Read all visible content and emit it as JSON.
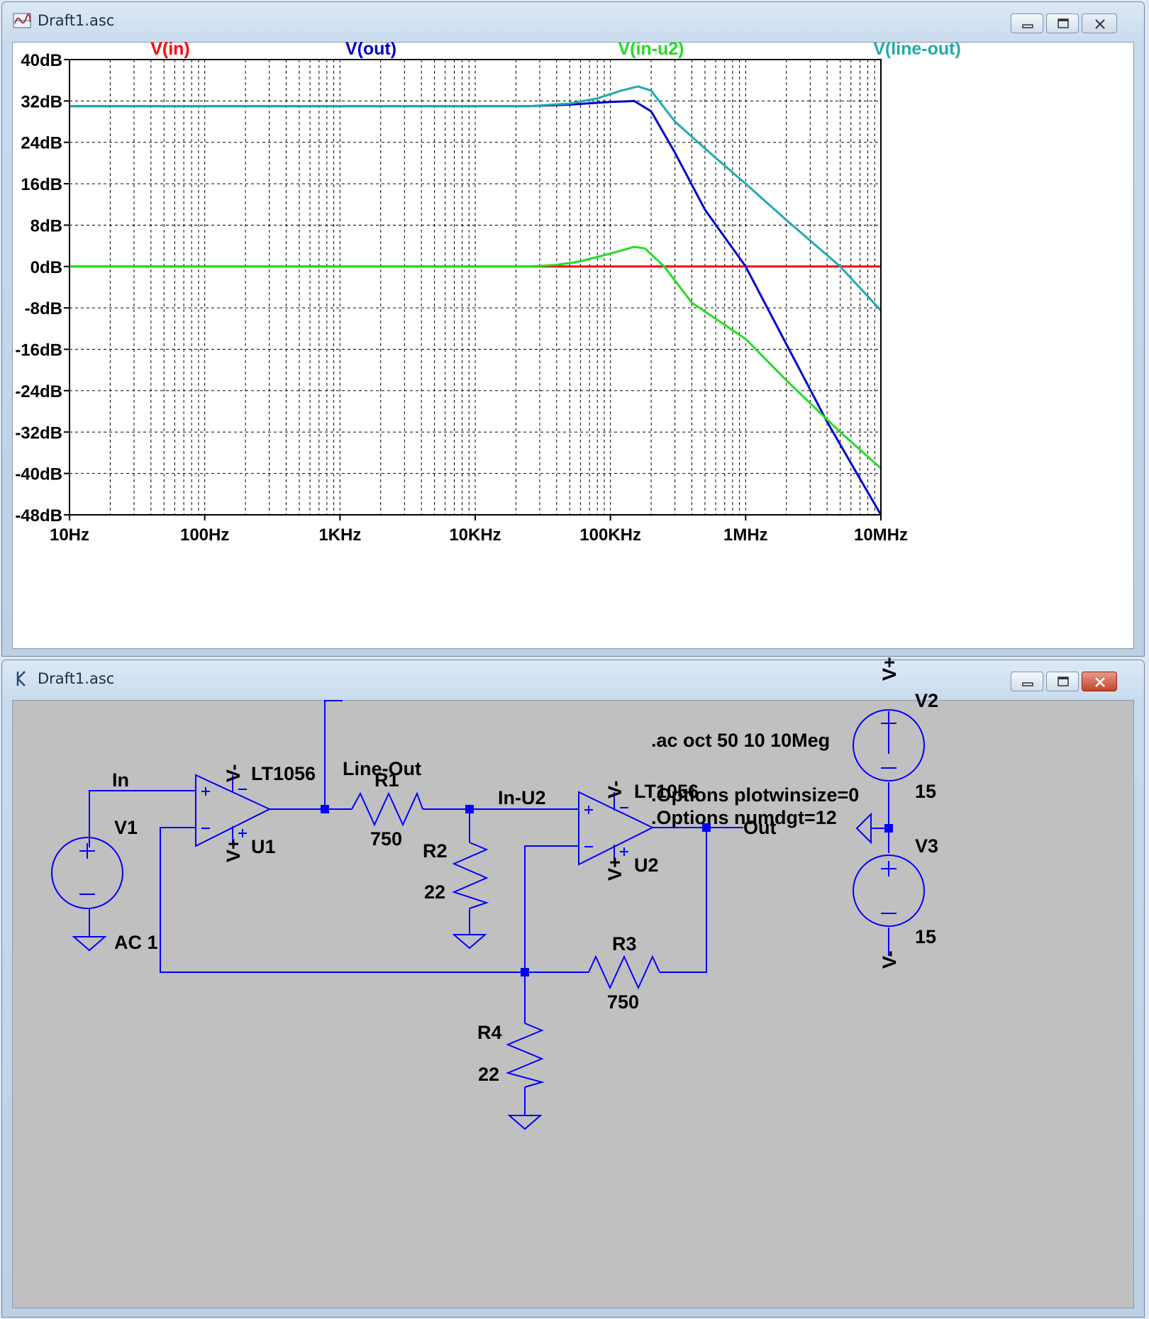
{
  "plot_window": {
    "title": "Draft1.asc",
    "icon": "waveform-icon"
  },
  "schematic_window": {
    "title": "Draft1.asc",
    "icon": "schematic-icon"
  },
  "chart_data": {
    "type": "line",
    "x_scale": "log",
    "xlim": [
      10,
      10000000
    ],
    "ylim": [
      -48,
      40
    ],
    "grid": true,
    "x_tick_labels": [
      "10Hz",
      "100Hz",
      "1KHz",
      "10KHz",
      "100KHz",
      "1MHz",
      "10MHz"
    ],
    "y_tick_labels": [
      "40dB",
      "32dB",
      "24dB",
      "16dB",
      "8dB",
      "0dB",
      "-8dB",
      "-16dB",
      "-24dB",
      "-32dB",
      "-40dB",
      "-48dB"
    ],
    "y_ticks": [
      40,
      32,
      24,
      16,
      8,
      0,
      -8,
      -16,
      -24,
      -32,
      -40,
      -48
    ],
    "series": [
      {
        "name": "V(in)",
        "color": "#ff0000",
        "x": [
          10,
          10000000
        ],
        "y": [
          0,
          0
        ]
      },
      {
        "name": "V(out)",
        "color": "#0000cc",
        "x": [
          10,
          25000,
          50000,
          100000,
          150000,
          200000,
          300000,
          500000,
          1000000,
          2000000,
          4000000,
          6000000,
          10000000
        ],
        "y": [
          31,
          31,
          31.3,
          31.8,
          32,
          30,
          22,
          11,
          0,
          -15,
          -30,
          -38,
          -48
        ]
      },
      {
        "name": "V(in-u2)",
        "color": "#22dd22",
        "x": [
          10,
          25000,
          40000,
          60000,
          100000,
          150000,
          180000,
          250000,
          400000,
          1000000,
          2000000,
          5000000,
          10000000
        ],
        "y": [
          0,
          0,
          0.3,
          1,
          2.5,
          3.8,
          3.5,
          0,
          -7,
          -14,
          -22,
          -32,
          -39
        ]
      },
      {
        "name": "V(line-out)",
        "color": "#22aaaa",
        "x": [
          10,
          25000,
          50000,
          80000,
          120000,
          160000,
          200000,
          300000,
          600000,
          1000000,
          2000000,
          5000000,
          10000000
        ],
        "y": [
          31,
          31,
          31.5,
          32.5,
          34,
          34.8,
          34,
          28,
          21,
          16,
          9,
          0,
          -8.5
        ]
      }
    ]
  },
  "schematic": {
    "directives": [
      ".ac oct 50 10 10Meg",
      ".Options plotwinsize=0",
      ".Options numdgt=12"
    ],
    "nets": {
      "line_out": "Line-Out",
      "in": "In",
      "in_u2": "In-U2",
      "out": "Out"
    },
    "components": {
      "V1": {
        "name": "V1",
        "value": "AC 1"
      },
      "U1": {
        "name": "U1",
        "model": "LT1056"
      },
      "U2": {
        "name": "U2",
        "model": "LT1056"
      },
      "R1": {
        "name": "R1",
        "value": "750"
      },
      "R2": {
        "name": "R2",
        "value": "22"
      },
      "R3": {
        "name": "R3",
        "value": "750"
      },
      "R4": {
        "name": "R4",
        "value": "22"
      },
      "V2": {
        "name": "V2",
        "value": "15"
      },
      "V3": {
        "name": "V3",
        "value": "15"
      }
    },
    "supply_labels": {
      "vplus": "V+",
      "vminus": "V-",
      "plus": "+",
      "minus": "−"
    }
  },
  "colors": {
    "wire": "#0000ff",
    "schematic_bg": "#c0c0c0",
    "plot_bg": "#ffffff"
  }
}
